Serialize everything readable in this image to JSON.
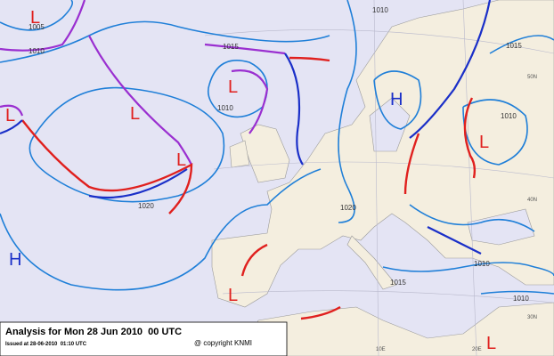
{
  "caption": {
    "title": "Analysis for Mon 28 Jun 2010  00 UTC",
    "issued": "Issued at 28-06-2010  01:10 UTC",
    "copyright": "@ copyright KNMI"
  },
  "isobar_labels": [
    "1005",
    "1010",
    "1010",
    "1015",
    "1010",
    "1020",
    "1015",
    "1010",
    "1020",
    "1010",
    "1015",
    "1010"
  ],
  "pressure_centers": [
    "L",
    "L",
    "L",
    "L",
    "L",
    "H",
    "L",
    "H",
    "L",
    "L"
  ],
  "grid_labels": [
    "50N",
    "40N",
    "30N",
    "10E",
    "20E"
  ]
}
